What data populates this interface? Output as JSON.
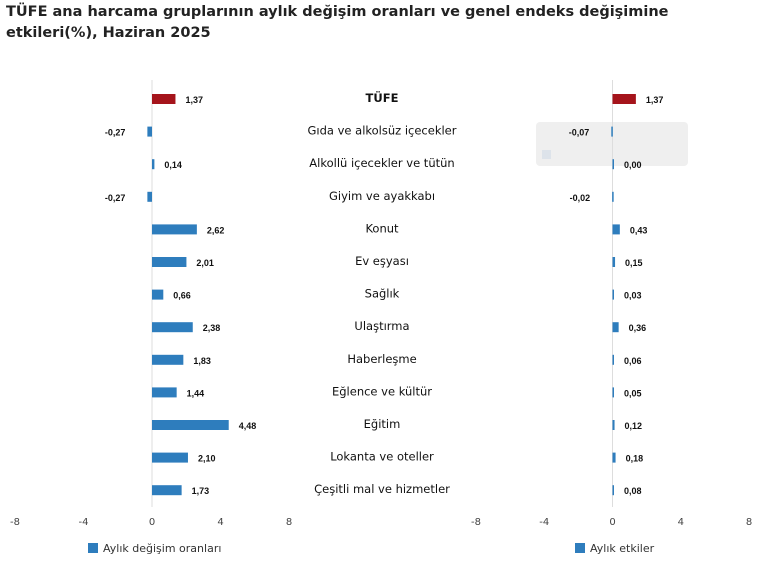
{
  "title": "TÜFE ana harcama gruplarının aylık değişim oranları ve genel endeks değişimine etkileri(%), Haziran 2025",
  "chart_data": [
    {
      "type": "bar",
      "orientation": "horizontal",
      "series": [
        {
          "name": "Aylık değişim oranları",
          "values": [
            1.37,
            -0.27,
            0.14,
            -0.27,
            2.62,
            2.01,
            0.66,
            2.38,
            1.83,
            1.44,
            4.48,
            2.1,
            1.73
          ],
          "labels": [
            "1,37",
            "-0,27",
            "0,14",
            "-0,27",
            "2,62",
            "2,01",
            "0,66",
            "2,38",
            "1,83",
            "1,44",
            "4,48",
            "2,10",
            "1,73"
          ]
        }
      ],
      "xlim": [
        -8,
        8
      ],
      "xticks": [
        "-8",
        "-4",
        "0",
        "4",
        "8"
      ],
      "legend": "bottom-left"
    },
    {
      "type": "bar",
      "orientation": "horizontal",
      "series": [
        {
          "name": "Aylık etkiler",
          "values": [
            1.37,
            -0.07,
            0.0,
            -0.02,
            0.43,
            0.15,
            0.03,
            0.36,
            0.06,
            0.05,
            0.12,
            0.18,
            0.08
          ],
          "labels": [
            "1,37",
            "-0,07",
            "0,00",
            "-0,02",
            "0,43",
            "0,15",
            "0,03",
            "0,36",
            "0,06",
            "0,05",
            "0,12",
            "0,18",
            "0,08"
          ]
        }
      ],
      "xlim": [
        -8,
        8
      ],
      "xticks": [
        "-8",
        "-4",
        "0",
        "4",
        "8"
      ],
      "legend": "bottom-right"
    }
  ],
  "categories": [
    "TÜFE",
    "Gıda ve alkolsüz içecekler",
    "Alkollü içecekler ve tütün",
    "Giyim ve ayakkabı",
    "Konut",
    "Ev eşyası",
    "Sağlık",
    "Ulaştırma",
    "Haberleşme",
    "Eğlence ve kültür",
    "Eğitim",
    "Lokanta ve oteller",
    "Çeşitli mal ve hizmetler"
  ],
  "colors": {
    "highlight": "#a5141b",
    "bar": "#2e7dbd"
  }
}
